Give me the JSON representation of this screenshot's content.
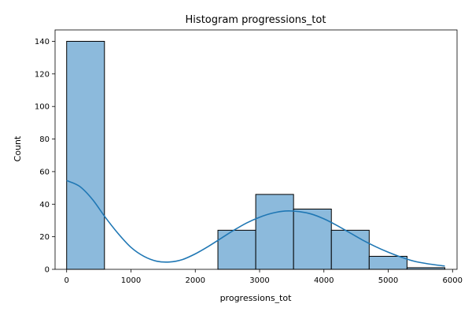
{
  "chart_data": {
    "type": "bar",
    "title": "Histogram progressions_tot",
    "xlabel": "progressions_tot",
    "ylabel": "Count",
    "xlim": [
      -180,
      6070
    ],
    "ylim": [
      0,
      147
    ],
    "x_ticks": [
      0,
      1000,
      2000,
      3000,
      4000,
      5000,
      6000
    ],
    "y_ticks": [
      0,
      20,
      40,
      60,
      80,
      100,
      120,
      140
    ],
    "grid": false,
    "legend": "none",
    "bins": [
      {
        "start": 0,
        "end": 588,
        "count": 140
      },
      {
        "start": 588,
        "end": 1176,
        "count": 0
      },
      {
        "start": 1176,
        "end": 1764,
        "count": 0
      },
      {
        "start": 1764,
        "end": 2352,
        "count": 0
      },
      {
        "start": 2352,
        "end": 2940,
        "count": 24
      },
      {
        "start": 2940,
        "end": 3528,
        "count": 46
      },
      {
        "start": 3528,
        "end": 4116,
        "count": 37
      },
      {
        "start": 4116,
        "end": 4704,
        "count": 24
      },
      {
        "start": 4704,
        "end": 5292,
        "count": 8
      },
      {
        "start": 5292,
        "end": 5880,
        "count": 1
      }
    ],
    "kde": {
      "x": [
        0,
        200,
        400,
        600,
        800,
        1000,
        1200,
        1400,
        1600,
        1800,
        2000,
        2200,
        2400,
        2600,
        2800,
        3000,
        3200,
        3400,
        3600,
        3800,
        4000,
        4200,
        4400,
        4600,
        4800,
        5000,
        5200,
        5400,
        5600,
        5880
      ],
      "y": [
        54.5,
        51,
        43,
        32,
        22,
        13.5,
        8,
        5,
        4.5,
        6,
        9.5,
        14,
        19,
        24,
        28.5,
        32,
        34.5,
        35.8,
        35.5,
        34,
        31,
        27,
        22.5,
        18,
        14,
        10.5,
        7.5,
        5,
        3.5,
        2
      ]
    },
    "colors": {
      "bar_fill": "#8cbadc",
      "bar_edge": "#000000",
      "kde_line": "#1f77b4"
    }
  }
}
